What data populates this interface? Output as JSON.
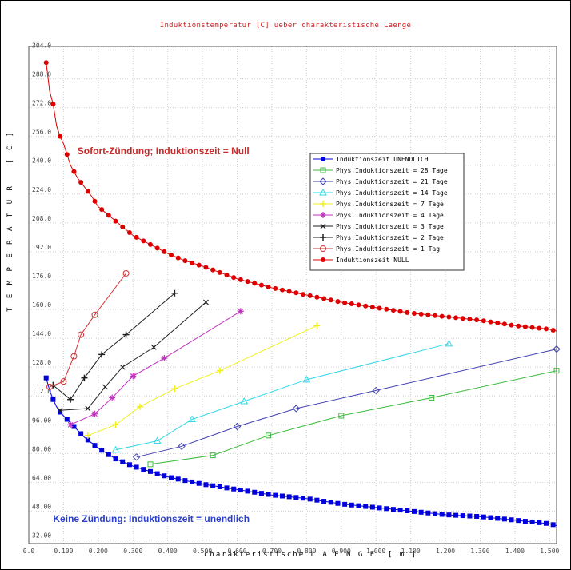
{
  "chart_data": {
    "type": "line",
    "title": "Induktionstemperatur [C] ueber charakteristische Laenge",
    "xlabel": "charakteristische L A E N G E  [ m ]",
    "ylabel": "T E M P E R A T U R   [ C ]",
    "xlim": [
      0.0,
      1.52
    ],
    "ylim": [
      30.0,
      306.0
    ],
    "xticks": [
      "0.0",
      "0.100",
      "0.200",
      "0.300",
      "0.400",
      "0.500",
      "0.600",
      "0.700",
      "0.800",
      "0.900",
      "1.000",
      "1.100",
      "1.200",
      "1.300",
      "1.400",
      "1.500"
    ],
    "xtick_values": [
      0.0,
      0.1,
      0.2,
      0.3,
      0.4,
      0.5,
      0.6,
      0.7,
      0.8,
      0.9,
      1.0,
      1.1,
      1.2,
      1.3,
      1.4,
      1.5
    ],
    "yticks": [
      "32.00",
      "48.00",
      "64.00",
      "80.00",
      "96.00",
      "112.0",
      "128.0",
      "144.0",
      "160.0",
      "176.0",
      "192.0",
      "208.0",
      "224.0",
      "240.0",
      "256.0",
      "272.0",
      "288.0",
      "304.0"
    ],
    "ytick_values": [
      32,
      48,
      64,
      80,
      96,
      112,
      128,
      144,
      160,
      176,
      192,
      208,
      224,
      240,
      256,
      272,
      288,
      304
    ],
    "grid": true,
    "legend_position": "right",
    "annotations": [
      {
        "text": "Sofort-Zündung; Induktionszeit = Null",
        "x": 0.14,
        "y": 246,
        "color": "#c82828"
      },
      {
        "text": "Keine Zündung: Induktionszeit = unendlich",
        "x": 0.07,
        "y": 42,
        "color": "#2a3fc8"
      }
    ],
    "series": [
      {
        "name": "Induktionszeit UNENDLICH",
        "color": "#0000dd",
        "marker": "filled-square",
        "step": 0.02,
        "x": [
          0.05,
          0.06,
          0.07,
          0.08,
          0.09,
          0.1,
          0.12,
          0.14,
          0.16,
          0.18,
          0.2,
          0.25,
          0.3,
          0.35,
          0.4,
          0.45,
          0.5,
          0.6,
          0.7,
          0.8,
          0.9,
          1.0,
          1.1,
          1.2,
          1.3,
          1.4,
          1.5,
          1.52
        ],
        "y": [
          122,
          115,
          110,
          106,
          103,
          101,
          97,
          93,
          89,
          86,
          83,
          77,
          73,
          70,
          67,
          65,
          63,
          60,
          57,
          55,
          52,
          50,
          48,
          46,
          45,
          43,
          41,
          40
        ]
      },
      {
        "name": "Phys.Induktionszeit = 28 Tage",
        "color": "#3cbb3c",
        "marker": "open-square",
        "x": [
          0.35,
          0.53,
          0.69,
          0.9,
          1.16,
          1.52
        ],
        "y": [
          74,
          79,
          90,
          101,
          111,
          126
        ]
      },
      {
        "name": "Phys.Induktionszeit = 21 Tage",
        "color": "#4040b0",
        "marker": "open-diamond",
        "x": [
          0.31,
          0.44,
          0.6,
          0.77,
          1.0,
          1.52
        ],
        "y": [
          78,
          84,
          95,
          105,
          115,
          138
        ]
      },
      {
        "name": "Phys.Induktionszeit = 14 Tage",
        "color": "#30d8e8",
        "marker": "open-triangle",
        "x": [
          0.25,
          0.37,
          0.47,
          0.62,
          0.8,
          1.21
        ],
        "y": [
          82,
          87,
          99,
          109,
          121,
          141
        ]
      },
      {
        "name": "Phys.Induktionszeit =  7 Tage",
        "color": "#f0f020",
        "marker": "plus",
        "x": [
          0.17,
          0.25,
          0.32,
          0.42,
          0.55,
          0.83
        ],
        "y": [
          90,
          96,
          106,
          116,
          126,
          151
        ]
      },
      {
        "name": "Phys.Induktionszeit =  4 Tage",
        "color": "#c030c0",
        "marker": "star",
        "x": [
          0.12,
          0.19,
          0.24,
          0.3,
          0.39,
          0.61
        ],
        "y": [
          96,
          102,
          111,
          123,
          133,
          159
        ]
      },
      {
        "name": "Phys.Induktionszeit =  3 Tage",
        "color": "#202020",
        "marker": "x",
        "x": [
          0.09,
          0.17,
          0.22,
          0.27,
          0.36,
          0.51
        ],
        "y": [
          104,
          105,
          117,
          128,
          139,
          164
        ]
      },
      {
        "name": "Phys.Induktionszeit =  2 Tage",
        "color": "#202020",
        "marker": "plus",
        "x": [
          0.07,
          0.12,
          0.16,
          0.21,
          0.28,
          0.42
        ],
        "y": [
          118,
          110,
          122,
          135,
          146,
          169
        ]
      },
      {
        "name": "Phys.Induktionszeit =  1 Tag",
        "color": "#d03030",
        "marker": "open-circle",
        "x": [
          0.06,
          0.1,
          0.13,
          0.15,
          0.19,
          0.28
        ],
        "y": [
          117,
          120,
          134,
          146,
          157,
          180
        ]
      },
      {
        "name": "Induktionszeit NULL",
        "color": "#dd0000",
        "marker": "filled-circle",
        "step": 0.02,
        "x": [
          0.05,
          0.06,
          0.07,
          0.08,
          0.09,
          0.1,
          0.12,
          0.14,
          0.16,
          0.18,
          0.2,
          0.25,
          0.3,
          0.35,
          0.4,
          0.45,
          0.5,
          0.6,
          0.7,
          0.8,
          0.9,
          1.0,
          1.1,
          1.2,
          1.3,
          1.4,
          1.5,
          1.52
        ],
        "y": [
          297,
          281,
          274,
          262,
          256,
          252,
          240,
          233,
          228,
          223,
          217,
          209,
          201,
          196,
          191,
          187,
          184,
          177,
          172,
          168,
          164,
          161,
          158,
          156,
          154,
          151,
          149,
          148
        ]
      }
    ]
  }
}
